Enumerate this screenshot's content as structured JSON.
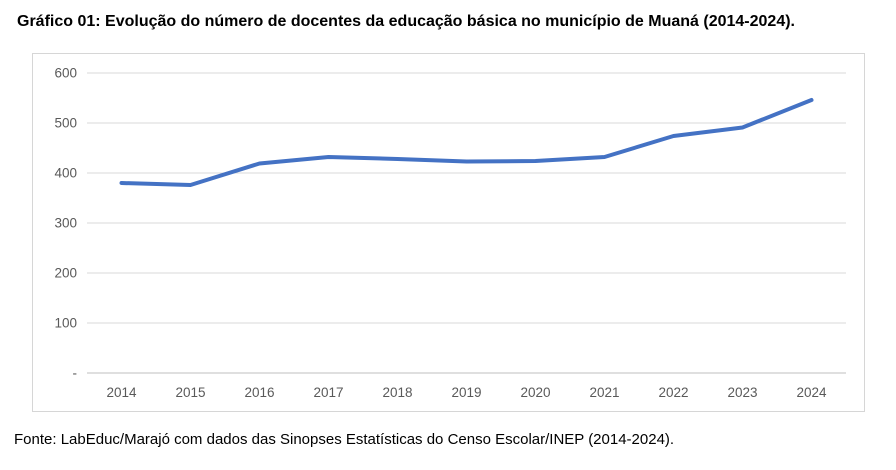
{
  "page": {
    "title": "Gráfico 01: Evolução do número de docentes da educação básica no município de Muaná (2014-2024).",
    "source": "Fonte: LabEduc/Marajó com dados das Sinopses Estatísticas do Censo Escolar/INEP (2014-2024)."
  },
  "chart_data": {
    "type": "line",
    "title": "Gráfico 01: Evolução do número de docentes da educação básica no município de Muaná (2014-2024).",
    "categories": [
      "2014",
      "2015",
      "2016",
      "2017",
      "2018",
      "2019",
      "2020",
      "2021",
      "2022",
      "2023",
      "2024"
    ],
    "values": [
      380,
      376,
      419,
      432,
      428,
      423,
      424,
      432,
      474,
      491,
      546
    ],
    "xlabel": "",
    "ylabel": "",
    "ylim": [
      0,
      600
    ],
    "yticks": [
      0,
      100,
      200,
      300,
      400,
      500,
      600
    ],
    "ytick_labels": [
      "-",
      "100",
      "200",
      "300",
      "400",
      "500",
      "600"
    ],
    "grid": true,
    "legend": "none",
    "line_color": "#4472C4",
    "grid_color": "#D9D9D9",
    "axis_color": "#BFBFBF",
    "tick_label_color": "#595959"
  }
}
